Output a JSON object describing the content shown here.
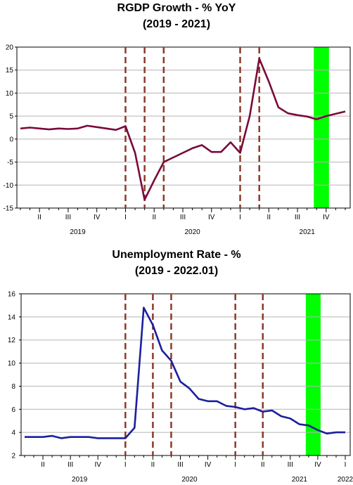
{
  "chart_data": [
    {
      "type": "line",
      "title": "RGDP Growth - % YoY",
      "subtitle": "(2019 - 2021)",
      "xlabel": "",
      "ylabel": "",
      "ylim": [
        -15,
        20
      ],
      "yticks": [
        -15,
        -10,
        -5,
        0,
        5,
        10,
        15,
        20
      ],
      "grid": true,
      "x_start": "2019-02",
      "x_end": "2021-12",
      "x_ticks": [
        {
          "x": "2019-04",
          "label": "II"
        },
        {
          "x": "2019-07",
          "label": "III"
        },
        {
          "x": "2019-10",
          "label": "IV"
        },
        {
          "x": "2020-01",
          "label": "I"
        },
        {
          "x": "2020-04",
          "label": "II"
        },
        {
          "x": "2020-07",
          "label": "III"
        },
        {
          "x": "2020-10",
          "label": "IV"
        },
        {
          "x": "2021-01",
          "label": "I"
        },
        {
          "x": "2021-04",
          "label": "II"
        },
        {
          "x": "2021-07",
          "label": "III"
        },
        {
          "x": "2021-10",
          "label": "IV"
        }
      ],
      "year_labels": [
        {
          "x": "2019-08",
          "label": "2019"
        },
        {
          "x": "2020-08",
          "label": "2020"
        },
        {
          "x": "2021-08",
          "label": "2021"
        }
      ],
      "line_color": "#7a0a3a",
      "series": [
        {
          "x": [
            "2019-02",
            "2019-03",
            "2019-04",
            "2019-05",
            "2019-06",
            "2019-07",
            "2019-08",
            "2019-09",
            "2019-10",
            "2019-11",
            "2019-12",
            "2020-01",
            "2020-02",
            "2020-03",
            "2020-04",
            "2020-05",
            "2020-06",
            "2020-07",
            "2020-08",
            "2020-09",
            "2020-10",
            "2020-11",
            "2020-12",
            "2021-01",
            "2021-02",
            "2021-03",
            "2021-04",
            "2021-05",
            "2021-06",
            "2021-07",
            "2021-08",
            "2021-09",
            "2021-10",
            "2021-11",
            "2021-12"
          ],
          "values": [
            2.3,
            2.5,
            2.3,
            2.1,
            2.3,
            2.2,
            2.3,
            2.9,
            2.6,
            2.3,
            2.0,
            2.8,
            -3.0,
            -13.2,
            -9.0,
            -5.0,
            -4.0,
            -3.0,
            -2.0,
            -1.3,
            -2.8,
            -2.8,
            -0.7,
            -3.0,
            5.0,
            17.5,
            12.5,
            6.9,
            5.6,
            5.2,
            4.9,
            4.3,
            5.0,
            5.5,
            6.0
          ]
        }
      ],
      "vlines": [
        "2020-01",
        "2020-03",
        "2020-05",
        "2021-01",
        "2021-03"
      ],
      "vline_color": "#8b3a2a",
      "shaded_region": {
        "start": "2021-09",
        "end": "2021-10",
        "color": "#00ff00"
      }
    },
    {
      "type": "line",
      "title": "Unemployment Rate - %",
      "subtitle": "(2019 - 2022.01)",
      "xlabel": "",
      "ylabel": "",
      "ylim": [
        2,
        16
      ],
      "yticks": [
        2,
        4,
        6,
        8,
        10,
        12,
        14,
        16
      ],
      "grid": true,
      "x_start": "2019-02",
      "x_end": "2022-01",
      "x_ticks": [
        {
          "x": "2019-04",
          "label": "II"
        },
        {
          "x": "2019-07",
          "label": "III"
        },
        {
          "x": "2019-10",
          "label": "IV"
        },
        {
          "x": "2020-01",
          "label": "I"
        },
        {
          "x": "2020-04",
          "label": "II"
        },
        {
          "x": "2020-07",
          "label": "III"
        },
        {
          "x": "2020-10",
          "label": "IV"
        },
        {
          "x": "2021-01",
          "label": "I"
        },
        {
          "x": "2021-04",
          "label": "II"
        },
        {
          "x": "2021-07",
          "label": "III"
        },
        {
          "x": "2021-10",
          "label": "IV"
        },
        {
          "x": "2022-01",
          "label": "I"
        }
      ],
      "year_labels": [
        {
          "x": "2019-08",
          "label": "2019"
        },
        {
          "x": "2020-08",
          "label": "2020"
        },
        {
          "x": "2021-08",
          "label": "2021"
        },
        {
          "x": "2022-01",
          "label": "2022"
        }
      ],
      "line_color": "#1c1f9e",
      "series": [
        {
          "x": [
            "2019-02",
            "2019-03",
            "2019-04",
            "2019-05",
            "2019-06",
            "2019-07",
            "2019-08",
            "2019-09",
            "2019-10",
            "2019-11",
            "2019-12",
            "2020-01",
            "2020-02",
            "2020-03",
            "2020-04",
            "2020-05",
            "2020-06",
            "2020-07",
            "2020-08",
            "2020-09",
            "2020-10",
            "2020-11",
            "2020-12",
            "2021-01",
            "2021-02",
            "2021-03",
            "2021-04",
            "2021-05",
            "2021-06",
            "2021-07",
            "2021-08",
            "2021-09",
            "2021-10",
            "2021-11",
            "2021-12",
            "2022-01"
          ],
          "values": [
            3.6,
            3.6,
            3.6,
            3.7,
            3.5,
            3.6,
            3.6,
            3.6,
            3.5,
            3.5,
            3.5,
            3.5,
            4.4,
            14.8,
            13.3,
            11.1,
            10.2,
            8.4,
            7.8,
            6.9,
            6.7,
            6.7,
            6.3,
            6.2,
            6.0,
            6.1,
            5.8,
            5.9,
            5.4,
            5.2,
            4.7,
            4.6,
            4.2,
            3.9,
            4.0,
            4.0
          ]
        }
      ],
      "vlines": [
        "2020-01",
        "2020-04",
        "2020-06",
        "2021-01",
        "2021-04"
      ],
      "vline_color": "#8b3a2a",
      "shaded_region": {
        "start": "2021-09",
        "end": "2021-10",
        "color": "#00ff00"
      }
    }
  ]
}
